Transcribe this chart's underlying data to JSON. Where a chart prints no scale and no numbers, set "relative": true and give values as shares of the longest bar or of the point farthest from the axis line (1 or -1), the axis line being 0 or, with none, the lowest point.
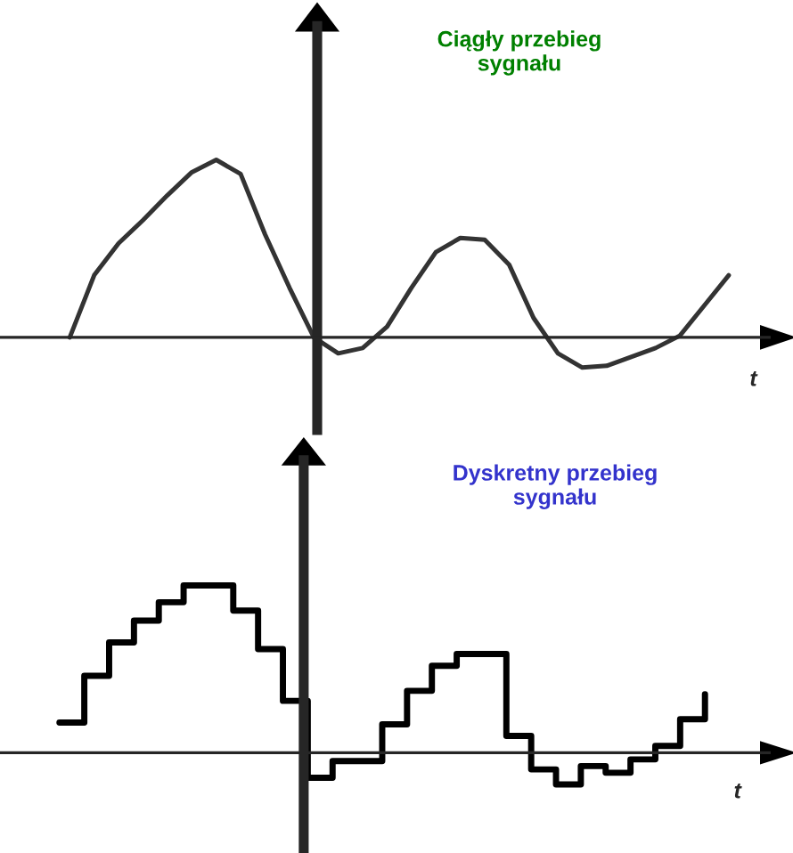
{
  "chart_data": [
    {
      "type": "line",
      "title": "Ciągły przebieg\nsygnału",
      "xlabel": "t",
      "relative": true,
      "categories": [
        null,
        null,
        null,
        null,
        null,
        null,
        null,
        null,
        null,
        null,
        null,
        null,
        null,
        null,
        null,
        null,
        null,
        null,
        null,
        null,
        null,
        null,
        null,
        null,
        null,
        null,
        null,
        null
      ],
      "series": [
        {
          "color": "#333333",
          "values": [
            0,
            0.35,
            0.53,
            0.66,
            0.8,
            0.93,
            1,
            0.92,
            0.58,
            0.28,
            0,
            -0.09,
            -0.06,
            0.06,
            0.28,
            0.48,
            0.56,
            0.55,
            0.41,
            0.11,
            -0.09,
            -0.17,
            -0.16,
            -0.11,
            -0.06,
            0.01,
            0.18,
            0.35
          ]
        }
      ]
    },
    {
      "type": "step",
      "title": "Dyskretny przebieg\nsygnału",
      "xlabel": "t",
      "relative": true,
      "categories": [
        null,
        null,
        null,
        null,
        null,
        null,
        null,
        null,
        null,
        null,
        null,
        null,
        null,
        null,
        null,
        null,
        null,
        null,
        null,
        null,
        null,
        null,
        null,
        null,
        null,
        null,
        null
      ],
      "series": [
        {
          "color": "#000000",
          "values": [
            0.18,
            0.46,
            0.66,
            0.79,
            0.9,
            1,
            1,
            0.85,
            0.62,
            0.31,
            -0.15,
            -0.05,
            -0.05,
            0.17,
            0.37,
            0.52,
            0.59,
            0.59,
            0.1,
            -0.1,
            -0.19,
            -0.08,
            -0.12,
            -0.04,
            0.04,
            0.2,
            0.35
          ]
        }
      ]
    }
  ]
}
